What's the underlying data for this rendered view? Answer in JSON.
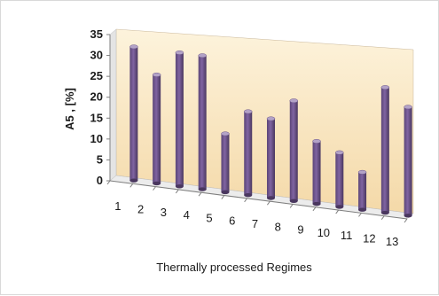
{
  "chart_data": {
    "type": "bar",
    "categories": [
      "1",
      "2",
      "3",
      "4",
      "5",
      "6",
      "7",
      "8",
      "9",
      "10",
      "11",
      "12",
      "13"
    ],
    "series": [
      {
        "values": [
          32,
          26,
          32,
          32,
          14,
          20,
          19,
          24,
          15,
          13,
          9,
          30,
          26
        ]
      }
    ],
    "xlabel": "Thermally processed Regimes",
    "ylabel": "A5 , [%]",
    "ylim": [
      0,
      35
    ],
    "yticks": [
      "0",
      "5",
      "10",
      "15",
      "20",
      "25",
      "30",
      "35"
    ],
    "grid": false,
    "legend": "none",
    "colors": {
      "bar": "#8064a2",
      "bar_top": "#b3a2c7",
      "wall_top": "#fdf3dc",
      "wall_bottom": "#f4d9a8",
      "floor": "#ededed"
    }
  }
}
